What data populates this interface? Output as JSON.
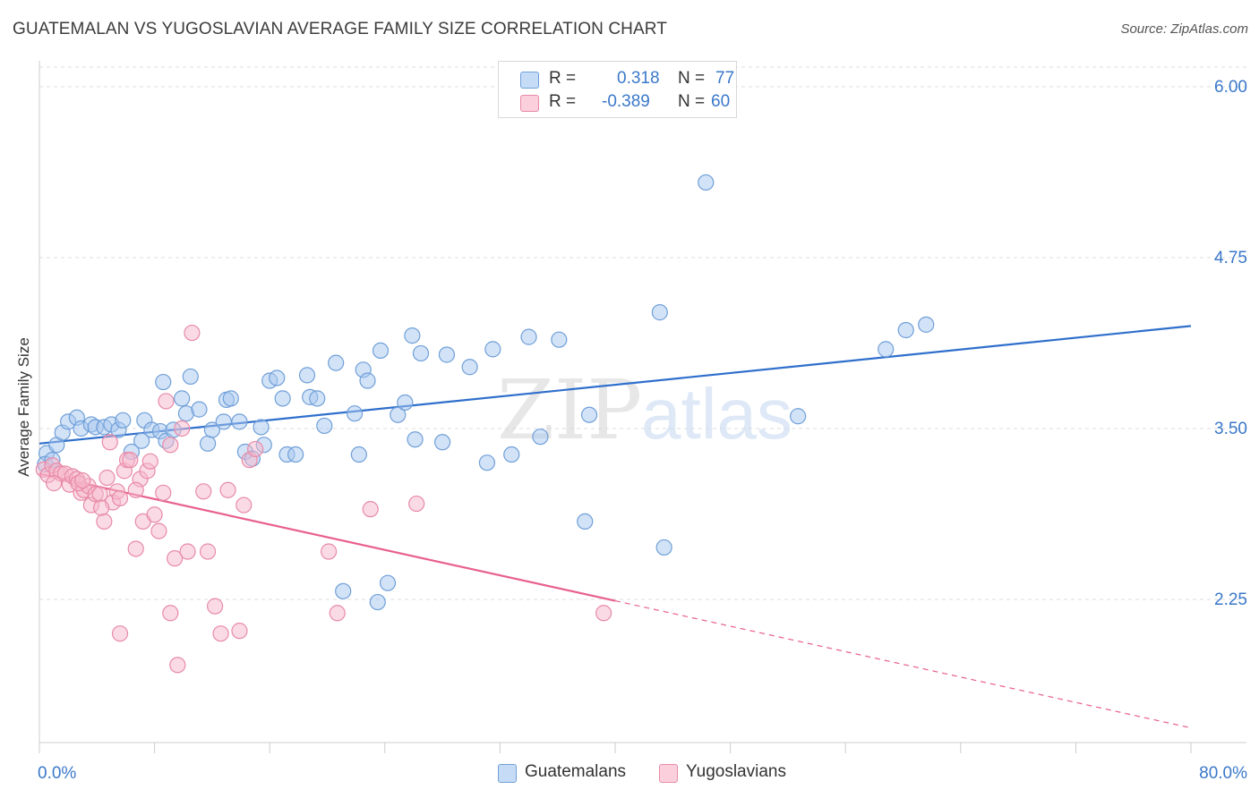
{
  "title": "GUATEMALAN VS YUGOSLAVIAN AVERAGE FAMILY SIZE CORRELATION CHART",
  "source": "Source: ZipAtlas.com",
  "watermark": {
    "zip": "ZIP",
    "atlas": "atlas"
  },
  "legend": {
    "rows": [
      {
        "r_label": "R =",
        "r_value": "0.318",
        "n_label": "N =",
        "n_value": "77",
        "color": "#a8c8f0"
      },
      {
        "r_label": "R =",
        "r_value": "-0.389",
        "n_label": "N =",
        "n_value": "60",
        "color": "#f5b8cb"
      }
    ]
  },
  "bottom_legend": [
    {
      "label": "Guatemalans",
      "color": "#a8c8f0"
    },
    {
      "label": "Yugoslavians",
      "color": "#f5b8cb"
    }
  ],
  "colors": {
    "blue_fill": "#a8c8f0",
    "blue_stroke": "#6f9fd8",
    "blue_line": "#2f6fcc",
    "pink_fill": "#f5b8cb",
    "pink_stroke": "#e88aa8",
    "pink_line": "#e8608c",
    "grid": "#dcdcdc",
    "axis_text": "#3a78c9"
  },
  "chart_data": {
    "type": "scatter",
    "title": "GUATEMALAN VS YUGOSLAVIAN AVERAGE FAMILY SIZE CORRELATION CHART",
    "xlabel": "",
    "ylabel": "Average Family Size",
    "xlim": [
      0,
      80
    ],
    "ylim": [
      1.0,
      6.2
    ],
    "x_tick_labels": [
      "0.0%",
      "80.0%"
    ],
    "y_ticks": [
      2.25,
      3.5,
      4.75,
      6.0
    ],
    "y_tick_labels": [
      "2.25",
      "3.50",
      "4.75",
      "6.00"
    ],
    "grid": true,
    "legend_placement": "top-center",
    "series": [
      {
        "name": "Guatemalans",
        "color": "#a8c8f0",
        "trend": {
          "x": [
            0,
            80
          ],
          "y": [
            3.39,
            4.25
          ],
          "solid_until": 80
        },
        "points": [
          [
            0.5,
            3.32
          ],
          [
            1.2,
            3.38
          ],
          [
            1.6,
            3.47
          ],
          [
            2.0,
            3.55
          ],
          [
            2.6,
            3.58
          ],
          [
            2.9,
            3.5
          ],
          [
            3.6,
            3.53
          ],
          [
            3.9,
            3.51
          ],
          [
            4.5,
            3.51
          ],
          [
            5.0,
            3.53
          ],
          [
            5.5,
            3.49
          ],
          [
            5.8,
            3.56
          ],
          [
            6.4,
            3.33
          ],
          [
            7.1,
            3.41
          ],
          [
            7.3,
            3.56
          ],
          [
            7.8,
            3.49
          ],
          [
            8.4,
            3.48
          ],
          [
            8.6,
            3.84
          ],
          [
            8.8,
            3.41
          ],
          [
            9.3,
            3.49
          ],
          [
            9.9,
            3.72
          ],
          [
            10.2,
            3.61
          ],
          [
            10.5,
            3.88
          ],
          [
            11.1,
            3.64
          ],
          [
            11.7,
            3.39
          ],
          [
            12.0,
            3.49
          ],
          [
            12.8,
            3.55
          ],
          [
            13.0,
            3.71
          ],
          [
            13.3,
            3.72
          ],
          [
            13.9,
            3.55
          ],
          [
            14.3,
            3.33
          ],
          [
            14.8,
            3.28
          ],
          [
            15.4,
            3.51
          ],
          [
            15.6,
            3.38
          ],
          [
            16.0,
            3.85
          ],
          [
            16.5,
            3.87
          ],
          [
            16.9,
            3.72
          ],
          [
            17.2,
            3.31
          ],
          [
            17.8,
            3.31
          ],
          [
            18.6,
            3.89
          ],
          [
            18.8,
            3.73
          ],
          [
            19.3,
            3.72
          ],
          [
            19.8,
            3.52
          ],
          [
            20.6,
            3.98
          ],
          [
            21.1,
            2.31
          ],
          [
            21.9,
            3.61
          ],
          [
            22.2,
            3.31
          ],
          [
            22.5,
            3.93
          ],
          [
            22.8,
            3.85
          ],
          [
            23.5,
            2.23
          ],
          [
            23.7,
            4.07
          ],
          [
            24.2,
            2.37
          ],
          [
            24.9,
            3.6
          ],
          [
            25.4,
            3.69
          ],
          [
            25.9,
            4.18
          ],
          [
            26.1,
            3.42
          ],
          [
            26.5,
            4.05
          ],
          [
            28.0,
            3.4
          ],
          [
            28.3,
            4.04
          ],
          [
            29.9,
            3.95
          ],
          [
            31.1,
            3.25
          ],
          [
            31.5,
            4.08
          ],
          [
            32.8,
            3.31
          ],
          [
            34.0,
            4.17
          ],
          [
            34.8,
            3.44
          ],
          [
            36.1,
            4.15
          ],
          [
            37.9,
            2.82
          ],
          [
            38.2,
            3.6
          ],
          [
            43.1,
            4.35
          ],
          [
            43.4,
            2.63
          ],
          [
            46.3,
            5.3
          ],
          [
            52.7,
            3.59
          ],
          [
            58.8,
            4.08
          ],
          [
            60.2,
            4.22
          ],
          [
            61.6,
            4.26
          ],
          [
            0.4,
            3.24
          ],
          [
            0.9,
            3.27
          ]
        ]
      },
      {
        "name": "Yugoslavians",
        "color": "#f5b8cb",
        "trend": {
          "x": [
            0,
            80
          ],
          "y": [
            3.17,
            1.31
          ],
          "solid_until": 40
        },
        "points": [
          [
            0.3,
            3.2
          ],
          [
            0.6,
            3.16
          ],
          [
            0.9,
            3.23
          ],
          [
            1.2,
            3.19
          ],
          [
            1.5,
            3.17
          ],
          [
            1.8,
            3.17
          ],
          [
            2.1,
            3.09
          ],
          [
            2.3,
            3.15
          ],
          [
            2.6,
            3.13
          ],
          [
            2.9,
            3.03
          ],
          [
            3.1,
            3.05
          ],
          [
            3.4,
            3.08
          ],
          [
            3.6,
            2.94
          ],
          [
            3.9,
            3.02
          ],
          [
            4.2,
            3.02
          ],
          [
            4.5,
            2.82
          ],
          [
            4.7,
            3.14
          ],
          [
            4.9,
            3.4
          ],
          [
            5.1,
            2.96
          ],
          [
            5.4,
            3.04
          ],
          [
            5.6,
            2.99
          ],
          [
            5.9,
            3.19
          ],
          [
            6.1,
            3.27
          ],
          [
            6.3,
            3.27
          ],
          [
            6.7,
            2.62
          ],
          [
            7.0,
            3.13
          ],
          [
            7.2,
            2.82
          ],
          [
            7.5,
            3.19
          ],
          [
            7.7,
            3.26
          ],
          [
            8.0,
            2.87
          ],
          [
            8.3,
            2.75
          ],
          [
            8.6,
            3.03
          ],
          [
            8.8,
            3.7
          ],
          [
            9.1,
            3.38
          ],
          [
            9.4,
            2.55
          ],
          [
            9.9,
            3.5
          ],
          [
            10.3,
            2.6
          ],
          [
            10.6,
            4.2
          ],
          [
            11.4,
            3.04
          ],
          [
            11.7,
            2.6
          ],
          [
            12.2,
            2.2
          ],
          [
            12.6,
            2.0
          ],
          [
            13.1,
            3.05
          ],
          [
            13.9,
            2.02
          ],
          [
            14.2,
            2.94
          ],
          [
            14.6,
            3.27
          ],
          [
            5.6,
            2.0
          ],
          [
            9.1,
            2.15
          ],
          [
            9.6,
            1.77
          ],
          [
            15.0,
            3.35
          ],
          [
            20.1,
            2.6
          ],
          [
            20.7,
            2.15
          ],
          [
            23.0,
            2.91
          ],
          [
            26.2,
            2.95
          ],
          [
            39.2,
            2.15
          ],
          [
            2.7,
            3.1
          ],
          [
            1.0,
            3.1
          ],
          [
            6.7,
            3.05
          ],
          [
            4.3,
            2.92
          ],
          [
            3.0,
            3.12
          ]
        ]
      }
    ]
  }
}
